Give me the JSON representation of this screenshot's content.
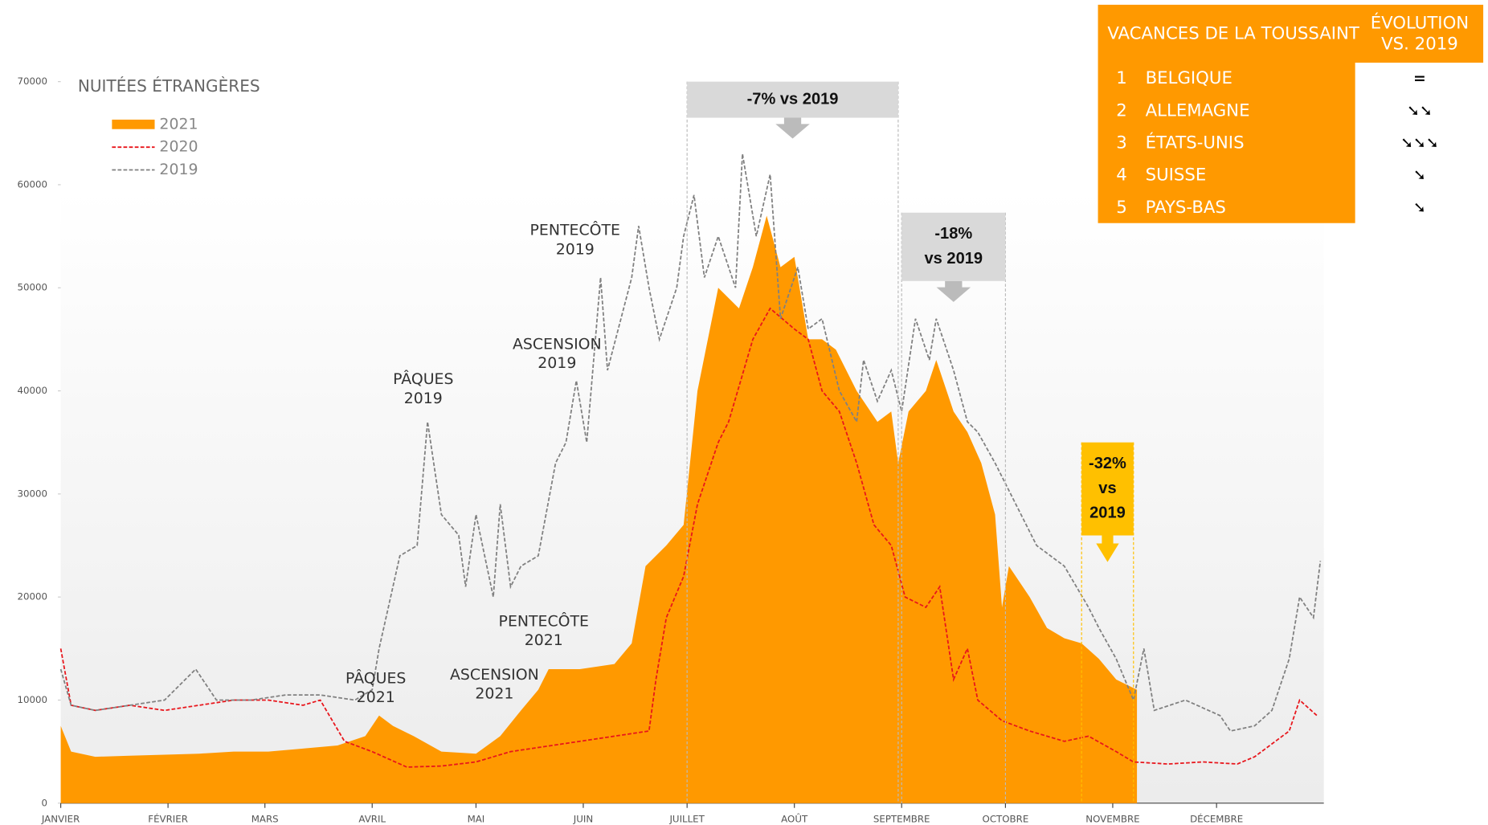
{
  "chart_data": {
    "type": "area-line",
    "title": "NUITÉES ÉTRANGÈRES",
    "xlim": [
      0,
      365
    ],
    "xticks": [
      {
        "value": 0,
        "label": "JANVIER"
      },
      {
        "value": 31,
        "label": "FÉVRIER"
      },
      {
        "value": 59,
        "label": "MARS"
      },
      {
        "value": 90,
        "label": "AVRIL"
      },
      {
        "value": 120,
        "label": "MAI"
      },
      {
        "value": 151,
        "label": "JUIN"
      },
      {
        "value": 181,
        "label": "JUILLET"
      },
      {
        "value": 212,
        "label": "AOÛT"
      },
      {
        "value": 243,
        "label": "SEPTEMBRE"
      },
      {
        "value": 273,
        "label": "OCTOBRE"
      },
      {
        "value": 304,
        "label": "NOVEMBRE"
      },
      {
        "value": 334,
        "label": "DÉCEMBRE"
      }
    ],
    "ylim": [
      0,
      70000
    ],
    "yticks": [
      0,
      10000,
      20000,
      30000,
      40000,
      50000,
      60000,
      70000
    ],
    "series": [
      {
        "name": "2021",
        "color": "#ff9900",
        "style": "area",
        "x": [
          0,
          3,
          10,
          20,
          30,
          40,
          50,
          60,
          70,
          80,
          88,
          92,
          96,
          102,
          110,
          120,
          127,
          133,
          138,
          141,
          150,
          160,
          165,
          169,
          175,
          180,
          184,
          190,
          196,
          200,
          204,
          208,
          212,
          216,
          220,
          224,
          230,
          236,
          240,
          242,
          245,
          250,
          253,
          258,
          262,
          266,
          270,
          272,
          274,
          280,
          285,
          290,
          295,
          300,
          305,
          308,
          311
        ],
        "values": [
          7500,
          5000,
          4500,
          4600,
          4700,
          4800,
          5000,
          5000,
          5300,
          5600,
          6500,
          8500,
          7500,
          6500,
          5000,
          4800,
          6500,
          9000,
          11000,
          13000,
          13000,
          13500,
          15500,
          23000,
          25000,
          27000,
          40000,
          50000,
          48000,
          52000,
          57000,
          52000,
          53000,
          45000,
          45000,
          44000,
          40000,
          37000,
          38000,
          33000,
          38000,
          40000,
          43000,
          38000,
          36000,
          33000,
          28000,
          19000,
          23000,
          20000,
          17000,
          16000,
          15500,
          14000,
          12000,
          11500,
          11000
        ]
      },
      {
        "name": "2020",
        "color": "#e8151b",
        "style": "dash",
        "x": [
          0,
          3,
          10,
          20,
          30,
          40,
          50,
          60,
          70,
          75,
          82,
          90,
          100,
          110,
          120,
          130,
          140,
          150,
          160,
          170,
          172,
          175,
          180,
          184,
          190,
          193,
          200,
          205,
          212,
          216,
          220,
          225,
          230,
          235,
          240,
          244,
          250,
          254,
          258,
          262,
          265,
          272,
          280,
          290,
          297,
          305,
          310,
          320,
          330,
          340,
          345,
          355,
          358,
          363
        ],
        "values": [
          15000,
          9500,
          9000,
          9500,
          9000,
          9500,
          10000,
          10000,
          9500,
          10000,
          6000,
          5000,
          3500,
          3600,
          4000,
          5000,
          5500,
          6000,
          6500,
          7000,
          12000,
          18000,
          22000,
          29000,
          35000,
          37000,
          45000,
          48000,
          46000,
          45000,
          40000,
          38000,
          33000,
          27000,
          25000,
          20000,
          19000,
          21000,
          12000,
          15000,
          10000,
          8000,
          7000,
          6000,
          6500,
          5000,
          4000,
          3800,
          4000,
          3800,
          4500,
          7000,
          10000,
          8500
        ]
      },
      {
        "name": "2019",
        "color": "#808080",
        "style": "dash",
        "x": [
          0,
          3,
          10,
          20,
          30,
          39,
          45,
          55,
          65,
          75,
          85,
          90,
          92,
          98,
          103,
          106,
          110,
          115,
          117,
          120,
          125,
          127,
          130,
          133,
          138,
          143,
          146,
          149,
          152,
          156,
          158,
          165,
          167,
          170,
          173,
          178,
          180,
          183,
          186,
          190,
          195,
          197,
          201,
          205,
          208,
          213,
          216,
          220,
          225,
          230,
          232,
          236,
          240,
          243,
          247,
          251,
          253,
          258,
          262,
          265,
          270,
          273,
          276,
          282,
          290,
          297,
          300,
          305,
          310,
          313,
          316,
          325,
          335,
          338,
          345,
          350,
          355,
          358,
          362,
          364
        ],
        "values": [
          13000,
          9500,
          9000,
          9500,
          10000,
          13000,
          10000,
          10000,
          10500,
          10500,
          10000,
          11000,
          15000,
          24000,
          25000,
          37000,
          28000,
          26000,
          21000,
          28000,
          20000,
          29000,
          21000,
          23000,
          24000,
          33000,
          35000,
          41000,
          35000,
          51000,
          42000,
          51000,
          56000,
          50000,
          45000,
          50000,
          55000,
          59000,
          51000,
          55000,
          50000,
          63000,
          55000,
          61000,
          47000,
          52000,
          46000,
          47000,
          40000,
          37000,
          43000,
          39000,
          42000,
          38000,
          47000,
          43000,
          47000,
          42000,
          37000,
          36000,
          33000,
          31000,
          29000,
          25000,
          23000,
          19000,
          17000,
          14000,
          10000,
          15000,
          9000,
          10000,
          8500,
          7000,
          7500,
          9000,
          14000,
          20000,
          18000,
          23500
        ]
      }
    ],
    "annotations": [
      {
        "lines": [
          "PENTECÔTE",
          "2019"
        ]
      },
      {
        "lines": [
          "ASCENSION",
          "2019"
        ]
      },
      {
        "lines": [
          "PÂQUES",
          "2019"
        ]
      },
      {
        "lines": [
          "PENTECÔTE",
          "2021"
        ]
      },
      {
        "lines": [
          "ASCENSION",
          "2021"
        ]
      },
      {
        "lines": [
          "PÂQUES",
          "2021"
        ]
      }
    ],
    "periods": [
      {
        "lines": [
          "-7% vs 2019"
        ],
        "start": 181,
        "end": 242
      },
      {
        "lines": [
          "-18%",
          "vs 2019"
        ],
        "start": 243,
        "end": 273
      },
      {
        "lines": [
          "-32%",
          "vs",
          "2019"
        ],
        "start": 295,
        "end": 310
      }
    ],
    "table": {
      "header": "VACANCES DE LA TOUSSAINT",
      "evolution_header": [
        "ÉVOLUTION",
        "VS. 2019"
      ],
      "rows": [
        [
          "1",
          "BELGIQUE",
          "="
        ],
        [
          "2",
          "ALLEMAGNE",
          "➘➘"
        ],
        [
          "3",
          "ÉTATS-UNIS",
          "➘➘➘"
        ],
        [
          "4",
          "SUISSE",
          "➘"
        ],
        [
          "5",
          "PAYS-BAS",
          "➘"
        ]
      ]
    }
  }
}
